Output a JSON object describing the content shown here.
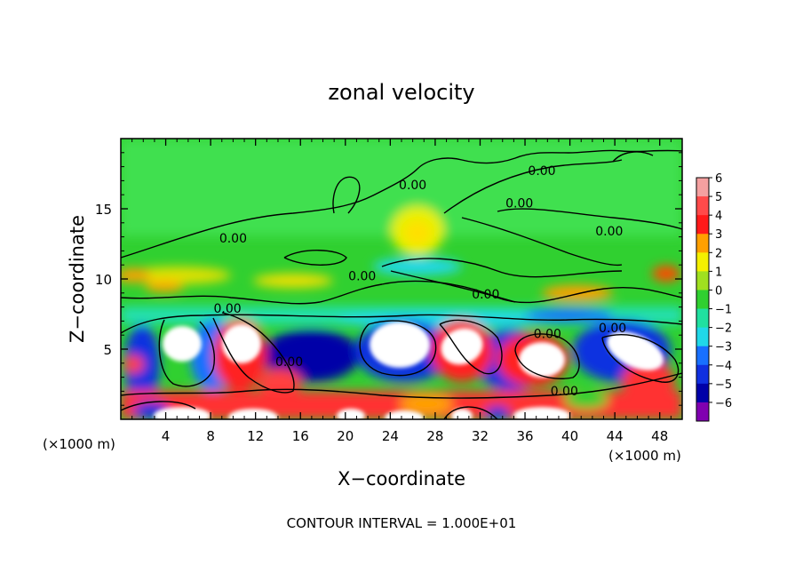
{
  "chart_data": {
    "type": "heatmap",
    "title": "zonal velocity",
    "xlabel": "X−coordinate",
    "ylabel": "Z−coordinate",
    "x_unit": "(×1000 m)",
    "z_unit": "(×1000 m)",
    "xlim": [
      0,
      50
    ],
    "ylim": [
      0,
      20
    ],
    "x_ticks": [
      4,
      8,
      12,
      16,
      20,
      24,
      28,
      32,
      36,
      40,
      44,
      48
    ],
    "x_tick_labels": [
      "4",
      "8",
      "12",
      "16",
      "20",
      "24",
      "28",
      "32",
      "36",
      "40",
      "44",
      "48"
    ],
    "y_ticks": [
      5,
      10,
      15
    ],
    "y_tick_labels": [
      "5",
      "10",
      "15"
    ],
    "colorbar": {
      "values": [
        6,
        5,
        4,
        3,
        2,
        1,
        0,
        -1,
        -2,
        -3,
        -4,
        -5,
        -6
      ],
      "labels": [
        "6",
        "5",
        "4",
        "3",
        "2",
        "1",
        "0",
        "−1",
        "−2",
        "−3",
        "−4",
        "−5",
        "−6"
      ],
      "colors": [
        "#f4a0a0",
        "#ff4a4a",
        "#ff1a1a",
        "#ffa000",
        "#f4f000",
        "#a0e020",
        "#30d030",
        "#20e0a0",
        "#20d8e8",
        "#1870ff",
        "#1030e0",
        "#0000a8",
        "#8000b0"
      ]
    },
    "contour_labels": [
      {
        "text": "0.00",
        "x": 10,
        "z": 12.6
      },
      {
        "text": "0.00",
        "x": 26,
        "z": 16.4
      },
      {
        "text": "0.00",
        "x": 37.5,
        "z": 17.4
      },
      {
        "text": "0.00",
        "x": 35.5,
        "z": 15.1
      },
      {
        "text": "0.00",
        "x": 43.5,
        "z": 13.1
      },
      {
        "text": "0.00",
        "x": 21.5,
        "z": 9.9
      },
      {
        "text": "0.00",
        "x": 32.5,
        "z": 8.6
      },
      {
        "text": "0.00",
        "x": 9.5,
        "z": 7.6
      },
      {
        "text": "0.00",
        "x": 38,
        "z": 5.8
      },
      {
        "text": "0.00",
        "x": 43.8,
        "z": 6.2
      },
      {
        "text": "0.00",
        "x": 15,
        "z": 3.8
      },
      {
        "text": "0.00",
        "x": 39.5,
        "z": 1.7
      }
    ],
    "footer": "CONTOUR INTERVAL = 1.000E+01",
    "grid": false
  }
}
